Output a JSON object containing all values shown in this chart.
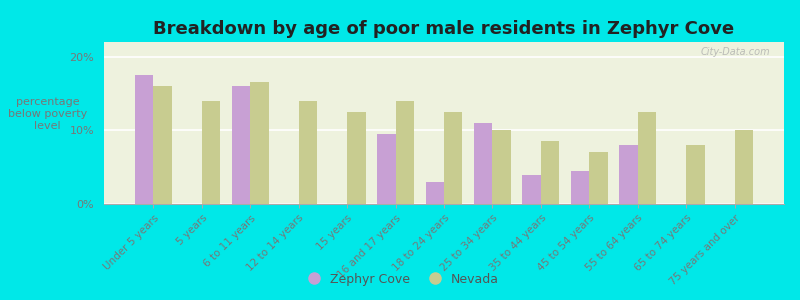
{
  "title": "Breakdown by age of poor male residents in Zephyr Cove",
  "ylabel": "percentage\nbelow poverty\nlevel",
  "categories": [
    "Under 5 years",
    "5 years",
    "6 to 11 years",
    "12 to 14 years",
    "15 years",
    "16 and 17 years",
    "18 to 24 years",
    "25 to 34 years",
    "35 to 44 years",
    "45 to 54 years",
    "55 to 64 years",
    "65 to 74 years",
    "75 years and over"
  ],
  "zephyr_cove": [
    17.5,
    0,
    16.0,
    0,
    0,
    9.5,
    3.0,
    11.0,
    4.0,
    4.5,
    8.0,
    0,
    0
  ],
  "nevada": [
    16.0,
    14.0,
    16.5,
    14.0,
    12.5,
    14.0,
    12.5,
    10.0,
    8.5,
    7.0,
    12.5,
    8.0,
    10.0
  ],
  "zephyr_color": "#c8a0d4",
  "nevada_color": "#c8cc90",
  "background_color": "#00e8e8",
  "plot_bg_color": "#eef2de",
  "ylim": [
    0,
    22
  ],
  "yticks": [
    0,
    10,
    20
  ],
  "ytick_labels": [
    "0%",
    "10%",
    "20%"
  ],
  "bar_width": 0.38,
  "title_fontsize": 13,
  "ylabel_fontsize": 8,
  "tick_fontsize": 8,
  "legend_fontsize": 9,
  "watermark": "City-Data.com"
}
